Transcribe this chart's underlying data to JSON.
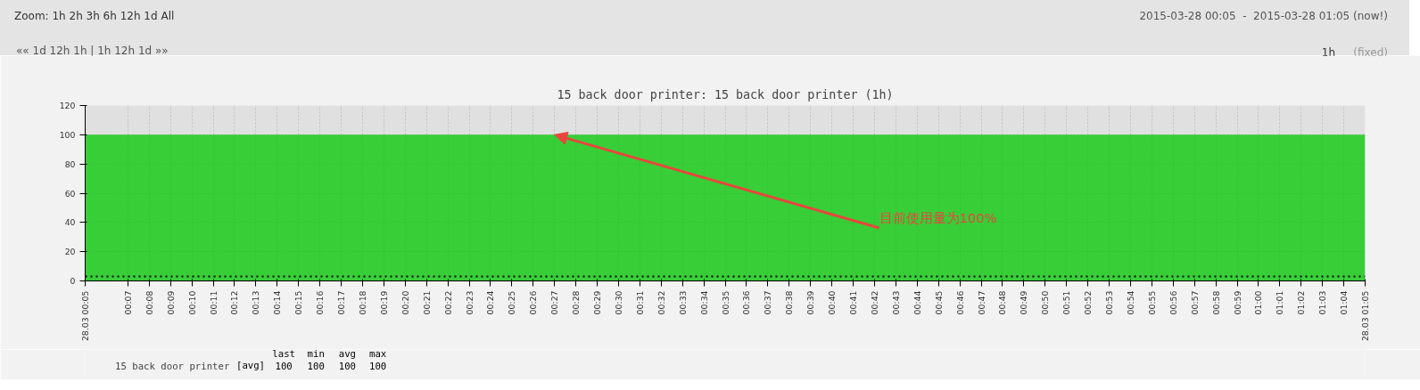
{
  "chart_data": {
    "type": "area",
    "title": "15 back door printer: 15 back door printer (1h)",
    "x": [
      0.0833,
      1.0833
    ],
    "series": [
      {
        "name": "15 back door printer",
        "color": "#00c800",
        "values": [
          100,
          100
        ]
      }
    ],
    "xlim": [
      0.0833,
      1.0833
    ],
    "xticks": [
      {
        "value": 0.0833,
        "label": "28.03 00:05"
      },
      {
        "value": 0.1167,
        "label": "00:07"
      },
      {
        "value": 0.1333,
        "label": "00:08"
      },
      {
        "value": 0.15,
        "label": "00:09"
      },
      {
        "value": 0.1667,
        "label": "00:10"
      },
      {
        "value": 0.1833,
        "label": "00:11"
      },
      {
        "value": 0.2,
        "label": "00:12"
      },
      {
        "value": 0.2167,
        "label": "00:13"
      },
      {
        "value": 0.2333,
        "label": "00:14"
      },
      {
        "value": 0.25,
        "label": "00:15"
      },
      {
        "value": 0.2667,
        "label": "00:16"
      },
      {
        "value": 0.2833,
        "label": "00:17"
      },
      {
        "value": 0.3,
        "label": "00:18"
      },
      {
        "value": 0.3167,
        "label": "00:19"
      },
      {
        "value": 0.3333,
        "label": "00:20"
      },
      {
        "value": 0.35,
        "label": "00:21"
      },
      {
        "value": 0.3667,
        "label": "00:22"
      },
      {
        "value": 0.3833,
        "label": "00:23"
      },
      {
        "value": 0.4,
        "label": "00:24"
      },
      {
        "value": 0.4167,
        "label": "00:25"
      },
      {
        "value": 0.4333,
        "label": "00:26"
      },
      {
        "value": 0.45,
        "label": "00:27"
      },
      {
        "value": 0.4667,
        "label": "00:28"
      },
      {
        "value": 0.4833,
        "label": "00:29"
      },
      {
        "value": 0.5,
        "label": "00:30"
      },
      {
        "value": 0.5167,
        "label": "00:31"
      },
      {
        "value": 0.5333,
        "label": "00:32"
      },
      {
        "value": 0.55,
        "label": "00:33"
      },
      {
        "value": 0.5667,
        "label": "00:34"
      },
      {
        "value": 0.5833,
        "label": "00:35"
      },
      {
        "value": 0.6,
        "label": "00:36"
      },
      {
        "value": 0.6167,
        "label": "00:37"
      },
      {
        "value": 0.6333,
        "label": "00:38"
      },
      {
        "value": 0.65,
        "label": "00:39"
      },
      {
        "value": 0.6667,
        "label": "00:40"
      },
      {
        "value": 0.6833,
        "label": "00:41"
      },
      {
        "value": 0.7,
        "label": "00:42"
      },
      {
        "value": 0.7167,
        "label": "00:43"
      },
      {
        "value": 0.7333,
        "label": "00:44"
      },
      {
        "value": 0.75,
        "label": "00:45"
      },
      {
        "value": 0.7667,
        "label": "00:46"
      },
      {
        "value": 0.7833,
        "label": "00:47"
      },
      {
        "value": 0.8,
        "label": "00:48"
      },
      {
        "value": 0.8167,
        "label": "00:49"
      },
      {
        "value": 0.8333,
        "label": "00:50"
      },
      {
        "value": 0.85,
        "label": "00:51"
      },
      {
        "value": 0.8667,
        "label": "00:52"
      },
      {
        "value": 0.8833,
        "label": "00:53"
      },
      {
        "value": 0.9,
        "label": "00:54"
      },
      {
        "value": 0.9167,
        "label": "00:55"
      },
      {
        "value": 0.9333,
        "label": "00:56"
      },
      {
        "value": 0.95,
        "label": "00:57"
      },
      {
        "value": 0.9667,
        "label": "00:58"
      },
      {
        "value": 0.9833,
        "label": "00:59"
      },
      {
        "value": 1.0,
        "label": "01:00"
      },
      {
        "value": 1.0167,
        "label": "01:01"
      },
      {
        "value": 1.0333,
        "label": "01:02"
      },
      {
        "value": 1.05,
        "label": "01:03"
      },
      {
        "value": 1.0667,
        "label": "01:04"
      },
      {
        "value": 1.0833,
        "label": "28.03 01:05"
      }
    ],
    "ylim": [
      0,
      120
    ],
    "yticks": [
      0,
      20,
      40,
      60,
      80,
      100,
      120
    ],
    "grid": true,
    "legend": "bottom left",
    "ref_lines": [
      {
        "axis": "y",
        "value": 3,
        "color": "#000000",
        "line_style": "dotted"
      }
    ],
    "annotations": [
      "Zoom: 1h 2h 3h 6h 12h 1d All",
      "2015-03-28 00:05  -  2015-03-28 01:05 (now!)",
      "«« 1d 12h 1h | 1h 12h 1d »»",
      "1h",
      "(fixed)",
      "[avg]",
      "last",
      "min",
      "avg",
      "max",
      "100",
      "100",
      "100",
      "100",
      {
        "text": "目前使用量为100%",
        "x": 0.45,
        "y": 100
      }
    ]
  }
}
